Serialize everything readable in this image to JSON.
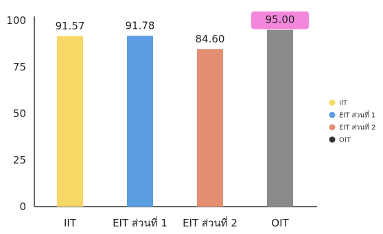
{
  "colors": {
    "iit": "#f7d766",
    "eit1": "#5b9ee3",
    "eit2": "#e58f72",
    "oit": "#8a8a8a",
    "highlight": "#f27ad8",
    "axis": "#333333"
  },
  "chart_data": {
    "type": "bar",
    "categories": [
      "IIT",
      "EIT ส่วนที่ 1",
      "EIT ส่วนที่ 2",
      "OIT"
    ],
    "values": [
      91.57,
      91.78,
      84.6,
      95.0
    ],
    "value_labels": [
      "91.57",
      "91.78",
      "84.60",
      "95.00"
    ],
    "highlighted_value_label": "95.00",
    "ylim": [
      0,
      100
    ],
    "y_ticks": [
      "0",
      "25",
      "50",
      "75",
      "100"
    ],
    "y_tick_values": [
      0,
      25,
      50,
      75,
      100
    ],
    "grid": false,
    "legend_position": "right",
    "legend": [
      {
        "label": "IIT",
        "color": "#f7d766"
      },
      {
        "label": "EIT ส่วนที่ 1",
        "color": "#5b9ee3"
      },
      {
        "label": "EIT ส่วนที่ 2",
        "color": "#e58f72"
      },
      {
        "label": "OIT",
        "color": "#333333"
      }
    ]
  }
}
